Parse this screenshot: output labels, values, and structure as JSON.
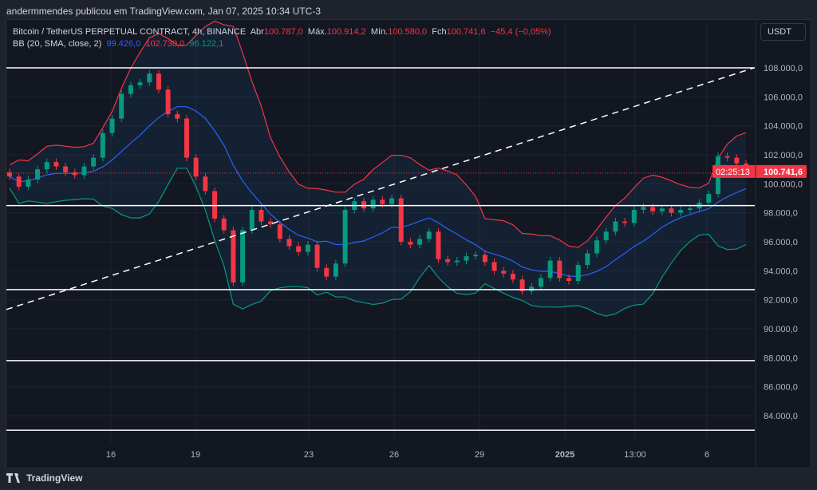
{
  "header": {
    "published": "andermmendes publicou em TradingView.com, Jan 07, 2025 10:34 UTC-3"
  },
  "legend": {
    "symbol": "Bitcoin / TetherUS PERPETUAL CONTRACT, 4h, BINANCE",
    "open_label": "Abr",
    "open": "100.787,0",
    "high_label": "Máx.",
    "high": "100.914,2",
    "low_label": "Mín.",
    "low": "100.580,0",
    "close_label": "Fch",
    "close": "100.741,6",
    "change": "−45,4 (−0,05%)",
    "bb_label": "BB (20, SMA, close, 2)",
    "bb_basis": "99.426,0",
    "bb_upper": "102.730,0",
    "bb_lower": "96.122,1"
  },
  "currency_button": "USDT",
  "price_axis": {
    "ticks": [
      108000,
      106000,
      104000,
      102000,
      100000,
      98000,
      96000,
      94000,
      92000,
      90000,
      88000,
      86000,
      84000
    ],
    "tick_labels": [
      "108.000,0",
      "106.000,0",
      "104.000,0",
      "102.000,0",
      "100.000,0",
      "98.000,0",
      "96.000,0",
      "94.000,0",
      "92.000,0",
      "90.000,0",
      "88.000,0",
      "86.000,0",
      "84.000,0"
    ]
  },
  "last_price": {
    "value": 100741.6,
    "label": "100.741,6",
    "countdown": "02:25:13"
  },
  "time_axis": {
    "labels": [
      "16",
      "19",
      "23",
      "26",
      "29",
      "2025",
      "13:00",
      "6"
    ]
  },
  "horizontal_levels": [
    108000,
    98500,
    92700,
    87800,
    83000
  ],
  "trendline": {
    "style": "dashed",
    "from_price": 91330,
    "to_price": 108000
  },
  "colors": {
    "up": "#089981",
    "down": "#f23645",
    "bb_upper": "#f23645",
    "bb_basis": "#2962ff",
    "bb_lower": "#089981",
    "levels": "#ffffff"
  },
  "closes": [
    100500,
    99800,
    100300,
    101000,
    101500,
    101200,
    100800,
    100600,
    101200,
    101800,
    103500,
    104500,
    106200,
    106800,
    107000,
    107600,
    106500,
    104800,
    104500,
    101800,
    100500,
    99500,
    97600,
    96800,
    93200,
    96800,
    98200,
    97400,
    97200,
    96200,
    95700,
    95300,
    95800,
    94200,
    93600,
    94500,
    98200,
    98800,
    98300,
    98900,
    98600,
    99000,
    96000,
    95800,
    96200,
    96700,
    94800,
    94600,
    94700,
    95000,
    95100,
    94600,
    94000,
    93800,
    93400,
    92600,
    92900,
    93500,
    94700,
    93500,
    93300,
    94400,
    95200,
    96100,
    96700,
    97400,
    97300,
    98200,
    98400,
    98100,
    98300,
    98000,
    98200,
    98300,
    98700,
    99300,
    101900,
    101800,
    101400,
    100741.6
  ],
  "footer": {
    "brand": "TradingView"
  }
}
